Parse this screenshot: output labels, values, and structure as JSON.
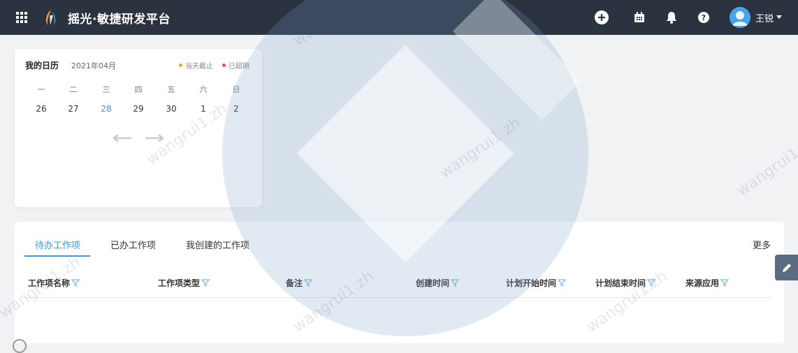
{
  "topbar": {
    "title": "摇光·敏捷研发平台",
    "user_name": "王锐",
    "icons": [
      "apps-grid-icon",
      "logo-icon",
      "add-circle-icon",
      "calendar-icon",
      "bell-icon",
      "help-icon",
      "avatar-icon"
    ]
  },
  "calendar": {
    "title": "我的日历",
    "month": "2021年04月",
    "legend": [
      {
        "label": "当天截止",
        "color": "#f5a623"
      },
      {
        "label": "已超期",
        "color": "#f04b4b"
      }
    ],
    "weekdays": [
      "一",
      "二",
      "三",
      "四",
      "五",
      "六",
      "日"
    ],
    "days": [
      "26",
      "27",
      "28",
      "29",
      "30",
      "1",
      "2"
    ],
    "today": "28"
  },
  "work": {
    "tabs": [
      "待办工作项",
      "已办工作项",
      "我创建的工作项"
    ],
    "active_tab": "待办工作项",
    "more": "更多",
    "columns": [
      "工作项名称",
      "工作项类型",
      "备注",
      "创建时间",
      "计划开始时间",
      "计划结束时间",
      "来源应用"
    ]
  },
  "watermark": "wangrui1.zh",
  "colors": {
    "topbar": "#2b3240",
    "accent": "#3a9ad9",
    "page_bg": "#f1f2f4"
  }
}
